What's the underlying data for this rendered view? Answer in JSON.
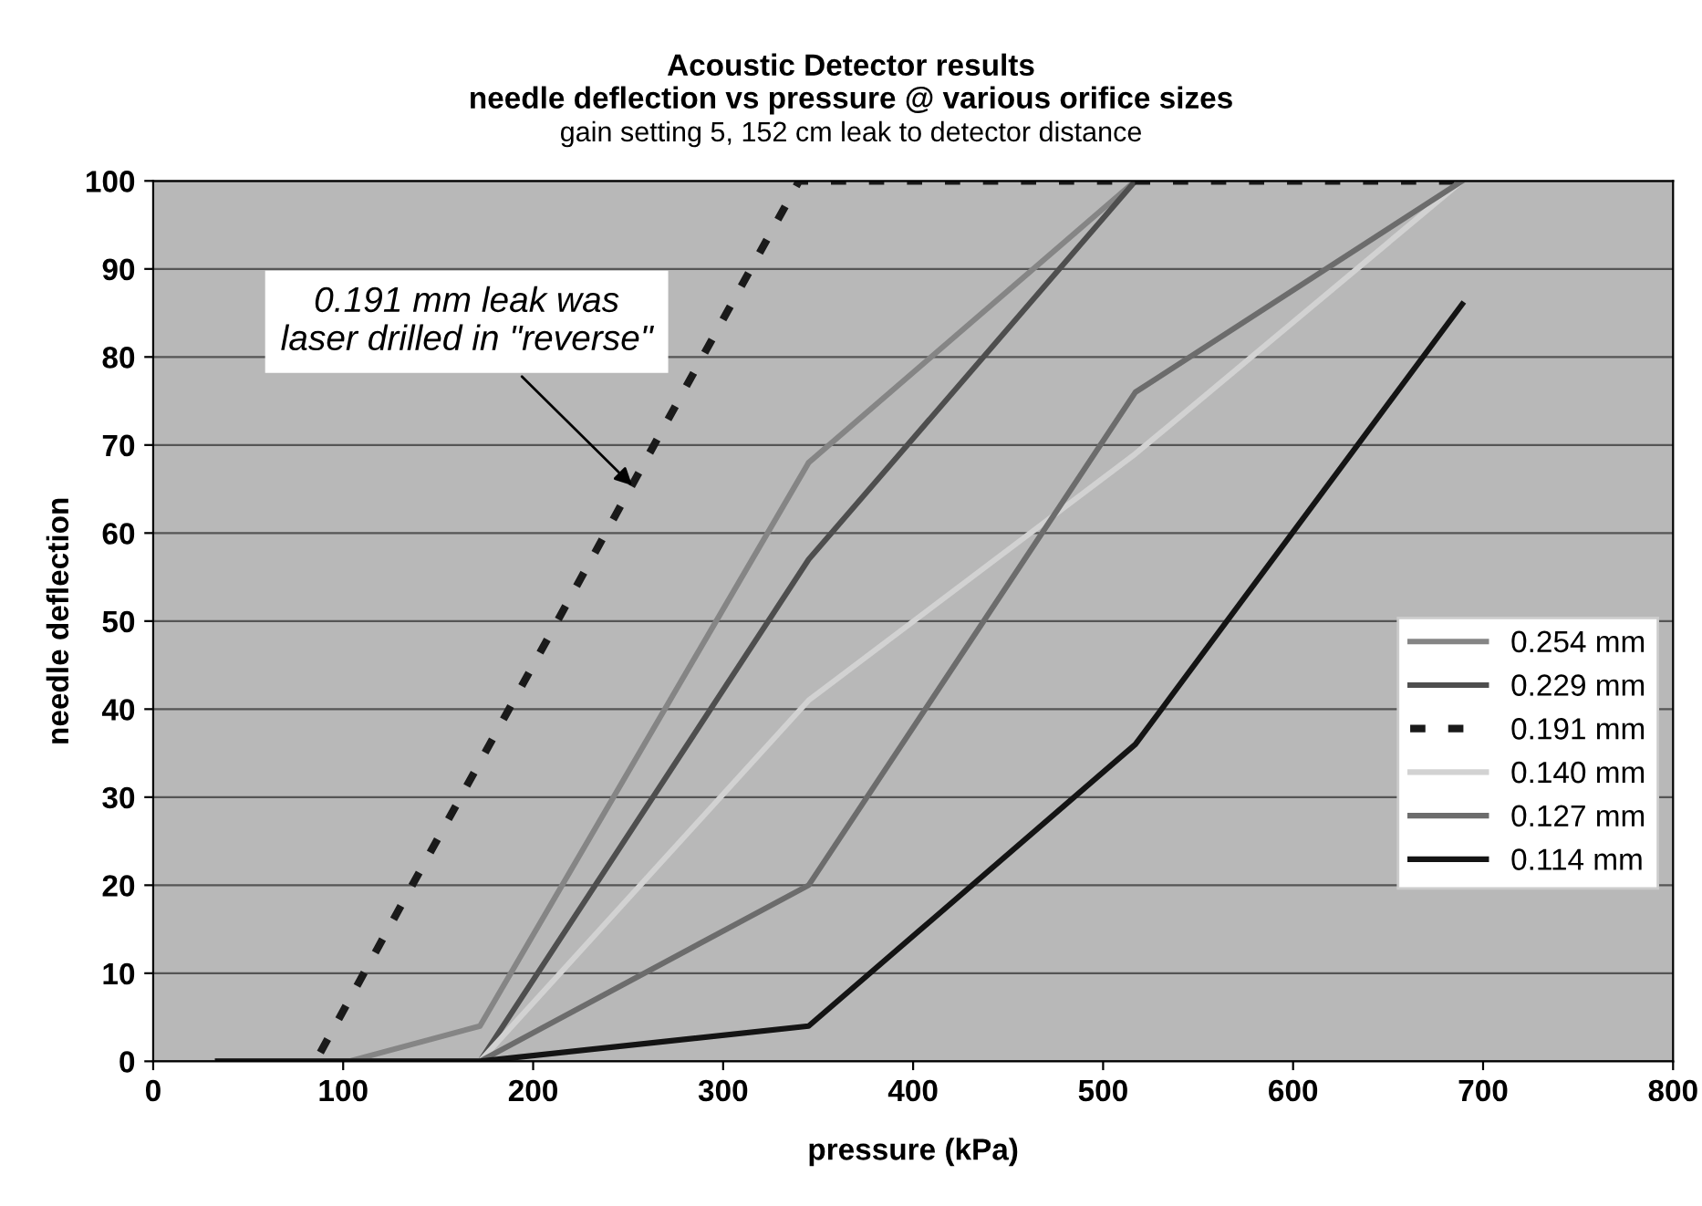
{
  "chart_data": {
    "type": "line",
    "title": "Acoustic Detector results\nneedle deflection vs pressure @ various orifice sizes",
    "subtitle": "gain setting 5, 152 cm leak to detector distance",
    "xlabel": "pressure (kPa)",
    "ylabel": "needle deflection",
    "xlim": [
      0,
      800
    ],
    "xticks": [
      0,
      100,
      200,
      300,
      400,
      500,
      600,
      700,
      800
    ],
    "ylim": [
      0,
      100
    ],
    "yticks": [
      0,
      10,
      20,
      30,
      40,
      50,
      60,
      70,
      80,
      90,
      100
    ],
    "grid": "y",
    "legend": "right",
    "marker": "none",
    "annotations": [
      {
        "text": "0.191 mm leak was\nlaser drilled in \"reverse\"",
        "x": 254,
        "y": 65
      }
    ],
    "series": [
      {
        "name": "0.254 mm",
        "color": "#858585",
        "x": [
          34,
          103,
          172,
          345,
          517
        ],
        "values": [
          0,
          0,
          4,
          68,
          100
        ],
        "line_style": "solid"
      },
      {
        "name": "0.229 mm",
        "color": "#4e4e4e",
        "x": [
          34,
          172,
          345,
          517
        ],
        "values": [
          0,
          0,
          57,
          100
        ],
        "line_style": "solid"
      },
      {
        "name": "0.191 mm",
        "color": "#1a1a1a",
        "x": [
          88,
          340,
          517,
          689
        ],
        "values": [
          1,
          100,
          100,
          100
        ],
        "line_style": "dashed"
      },
      {
        "name": "0.140 mm",
        "color": "#d2d2d2",
        "x": [
          34,
          172,
          345,
          517,
          689
        ],
        "values": [
          0,
          0,
          41,
          69,
          100
        ],
        "line_style": "solid"
      },
      {
        "name": "0.127 mm",
        "color": "#6c6c6c",
        "x": [
          34,
          172,
          345,
          517,
          689
        ],
        "values": [
          0,
          0,
          20,
          76,
          100
        ],
        "line_style": "solid"
      },
      {
        "name": "0.114 mm",
        "color": "#141414",
        "x": [
          34,
          172,
          345,
          517,
          689
        ],
        "values": [
          0,
          0,
          4,
          36,
          86
        ],
        "line_style": "solid"
      }
    ]
  }
}
